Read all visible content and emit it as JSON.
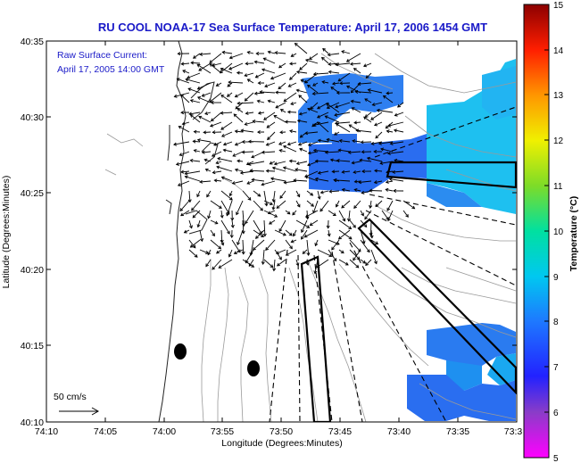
{
  "title": "RU COOL  NOAA-17  Sea Surface Temperature:  April 17, 2006 1454 GMT",
  "annotation": {
    "line1": "Raw Surface Current:",
    "line2": "April 17, 2005 14:00 GMT"
  },
  "scale_label": "50 cm/s",
  "x_axis": {
    "label": "Longitude (Degrees:Minutes)",
    "ticks": [
      "74:10",
      "74:05",
      "74:00",
      "73:55",
      "73:50",
      "73:45",
      "73:40",
      "73:35",
      "73:3"
    ]
  },
  "y_axis": {
    "label": "Latitude (Degrees:Minutes)",
    "ticks": [
      "40:35",
      "40:30",
      "40:25",
      "40:20",
      "40:15",
      "40:10"
    ]
  },
  "colorbar": {
    "label": "Temperature (°C)",
    "ticks": [
      "15",
      "14",
      "13",
      "12",
      "11",
      "10",
      "9",
      "8",
      "7",
      "6",
      "5"
    ]
  }
}
